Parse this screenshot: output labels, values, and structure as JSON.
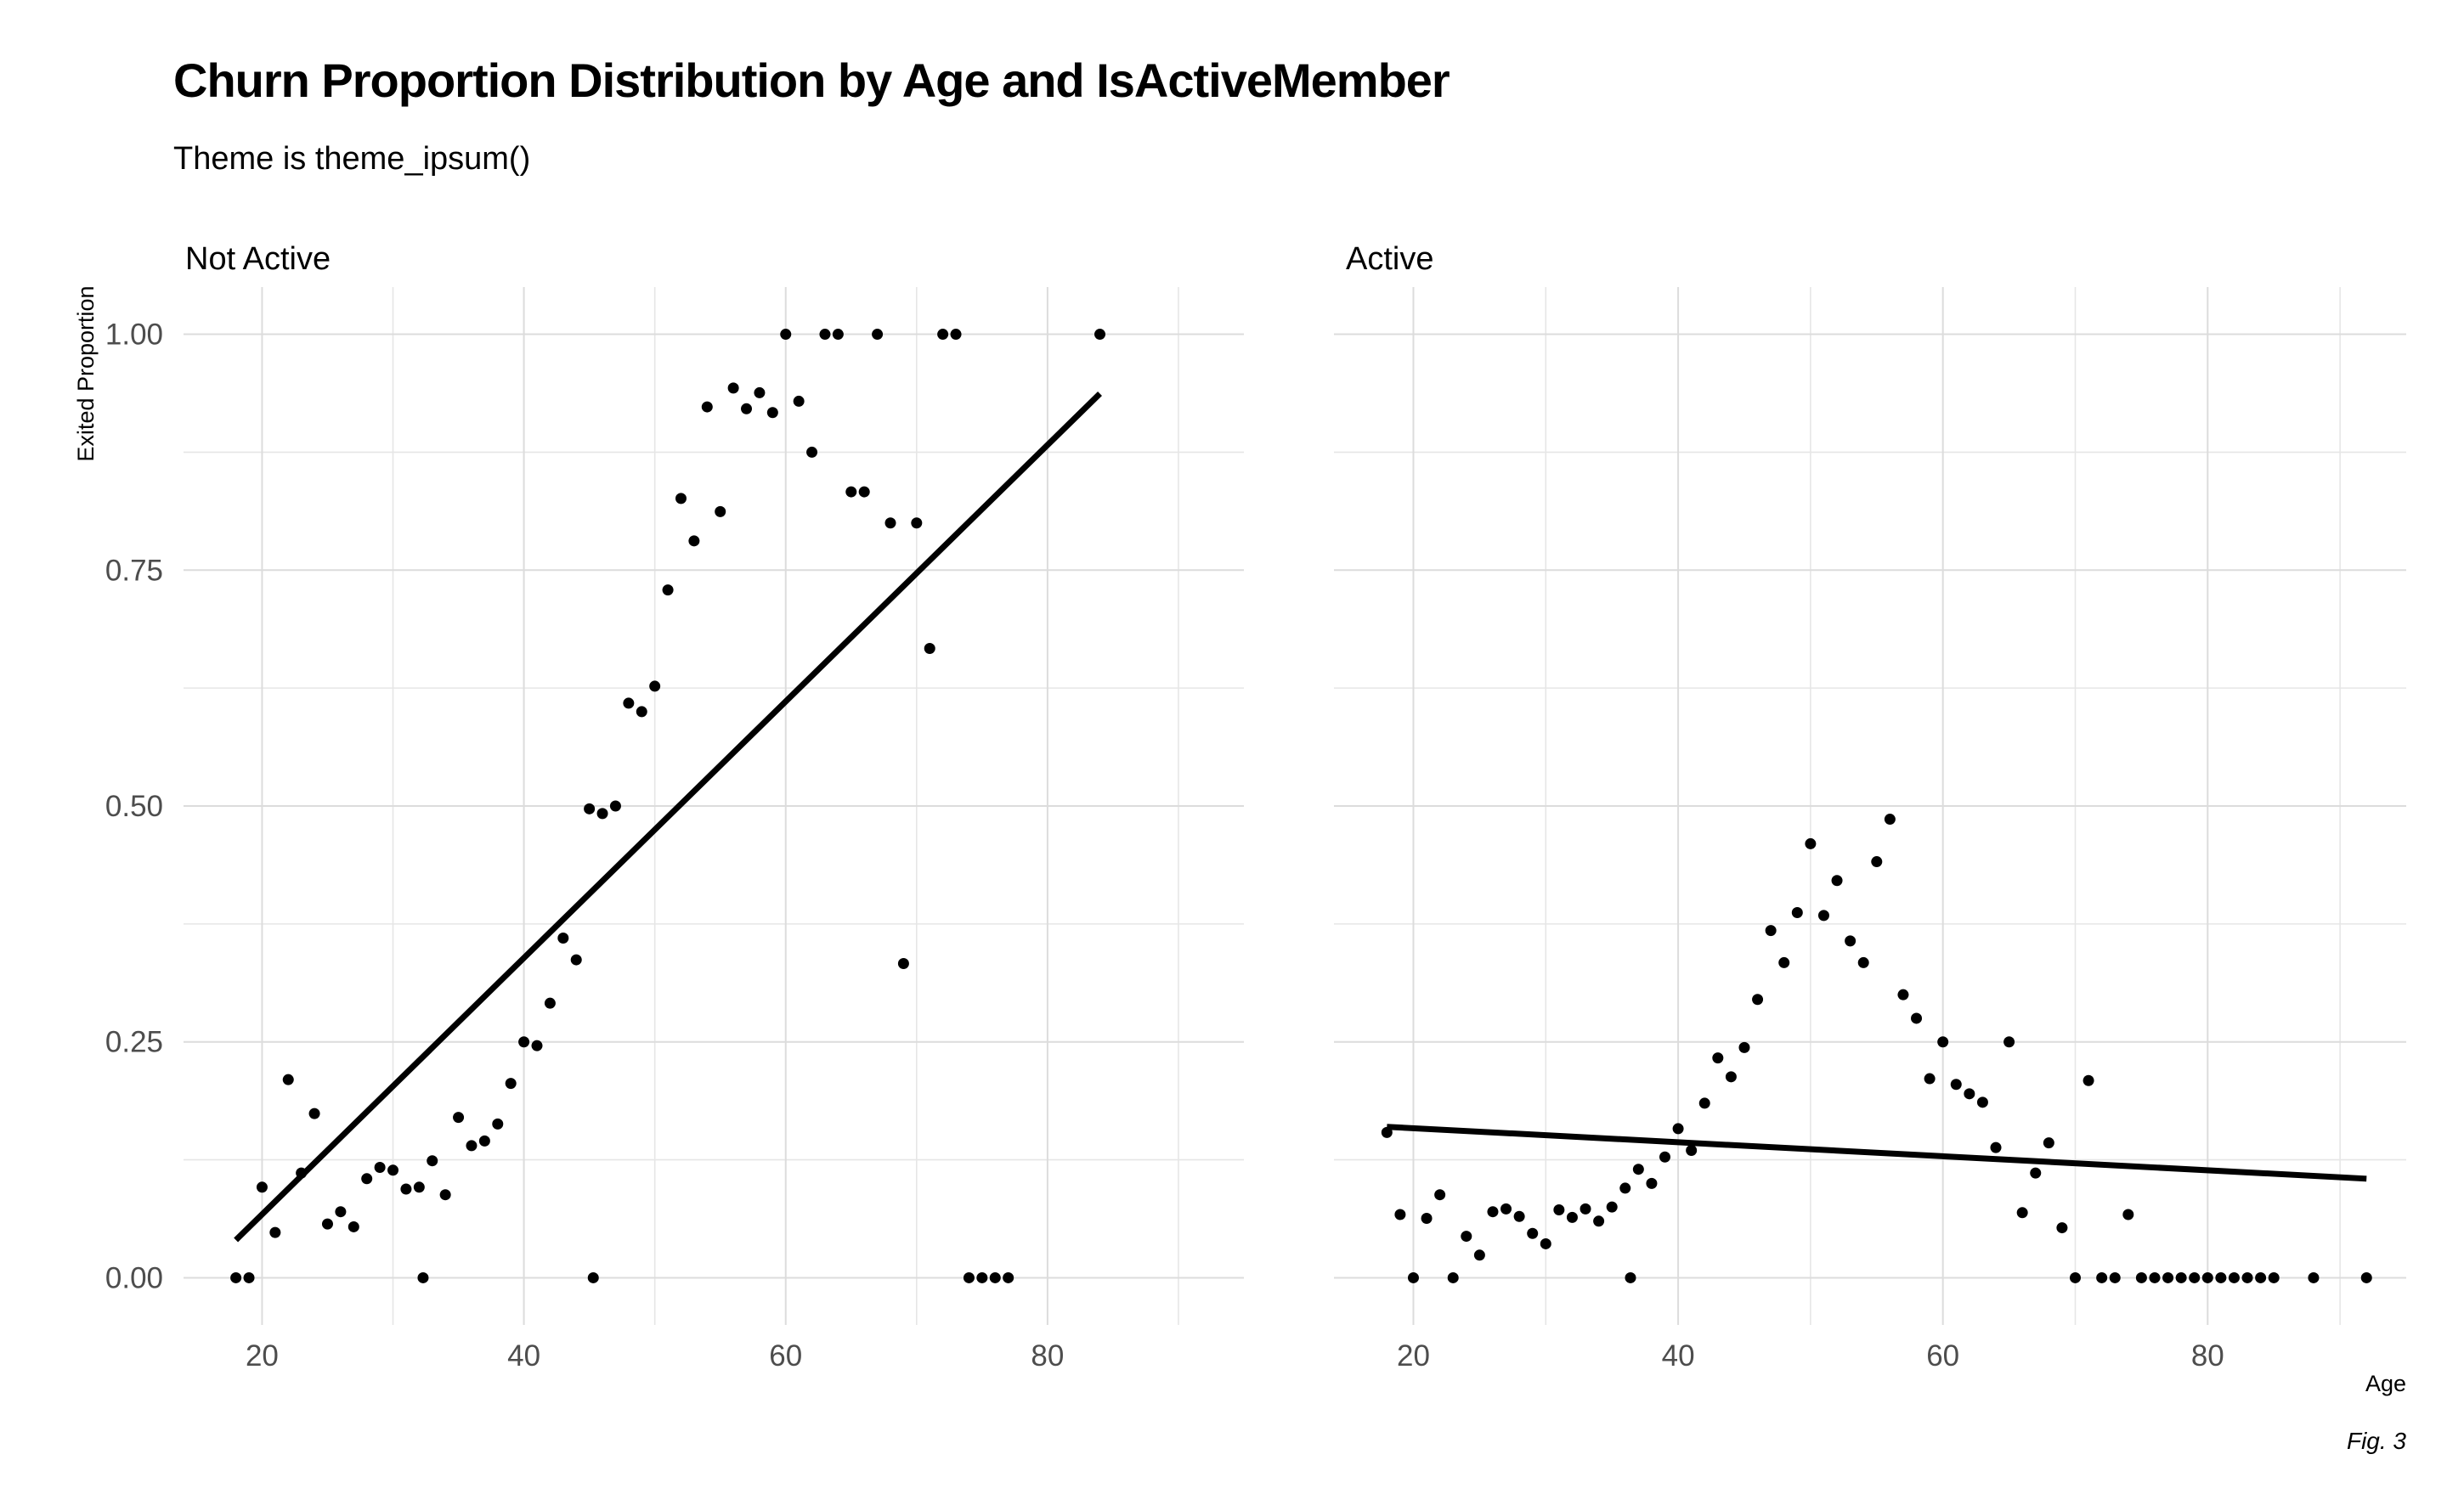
{
  "chart_data": {
    "type": "scatter",
    "title": "Churn Proportion Distribution by Age and IsActiveMember",
    "subtitle": "Theme is theme_ipsum()",
    "xlabel": "Age",
    "ylabel": "Exited Proportion",
    "caption": "Fig. 3",
    "xlim": [
      14,
      95
    ],
    "ylim": [
      -0.05,
      1.05
    ],
    "x_ticks": [
      20,
      40,
      60,
      80
    ],
    "x_tick_labels": [
      "20",
      "40",
      "60",
      "80"
    ],
    "y_ticks": [
      0,
      0.25,
      0.5,
      0.75,
      1
    ],
    "y_tick_labels": [
      "0.00",
      "0.25",
      "0.50",
      "0.75",
      "1.00"
    ],
    "grid": true,
    "facets": [
      {
        "name": "Not Active",
        "points": [
          [
            18,
            0
          ],
          [
            19,
            0
          ],
          [
            20,
            0.096
          ],
          [
            21,
            0.048
          ],
          [
            22,
            0.21
          ],
          [
            23,
            0.111
          ],
          [
            24,
            0.174
          ],
          [
            25,
            0.057
          ],
          [
            26,
            0.07
          ],
          [
            27,
            0.054
          ],
          [
            28,
            0.105
          ],
          [
            29,
            0.117
          ],
          [
            30,
            0.114
          ],
          [
            31,
            0.094
          ],
          [
            32,
            0.096
          ],
          [
            32.3,
            0
          ],
          [
            33,
            0.124
          ],
          [
            34,
            0.088
          ],
          [
            35,
            0.17
          ],
          [
            36,
            0.14
          ],
          [
            37,
            0.145
          ],
          [
            38,
            0.163
          ],
          [
            39,
            0.206
          ],
          [
            40,
            0.25
          ],
          [
            41,
            0.246
          ],
          [
            42,
            0.291
          ],
          [
            43,
            0.36
          ],
          [
            44,
            0.337
          ],
          [
            45,
            0.497
          ],
          [
            45.3,
            0
          ],
          [
            46,
            0.492
          ],
          [
            47,
            0.5
          ],
          [
            48,
            0.609
          ],
          [
            49,
            0.6
          ],
          [
            50,
            0.627
          ],
          [
            51,
            0.729
          ],
          [
            52,
            0.826
          ],
          [
            53,
            0.781
          ],
          [
            54,
            0.923
          ],
          [
            55,
            0.812
          ],
          [
            56,
            0.943
          ],
          [
            57,
            0.921
          ],
          [
            58,
            0.938
          ],
          [
            59,
            0.917
          ],
          [
            60,
            1
          ],
          [
            61,
            0.929
          ],
          [
            62,
            0.875
          ],
          [
            63,
            1
          ],
          [
            64,
            1
          ],
          [
            65,
            0.833
          ],
          [
            66,
            0.833
          ],
          [
            67,
            1
          ],
          [
            68,
            0.8
          ],
          [
            69,
            0.333
          ],
          [
            70,
            0.8
          ],
          [
            71,
            0.667
          ],
          [
            72,
            1
          ],
          [
            73,
            1
          ],
          [
            74,
            0
          ],
          [
            75,
            0
          ],
          [
            76,
            0
          ],
          [
            77,
            0
          ],
          [
            84,
            1
          ]
        ],
        "fit_line": {
          "x": [
            18,
            84
          ],
          "y": [
            0.04,
            0.937
          ]
        }
      },
      {
        "name": "Active",
        "points": [
          [
            18,
            0.154
          ],
          [
            19,
            0.067
          ],
          [
            20,
            0
          ],
          [
            21,
            0.063
          ],
          [
            22,
            0.088
          ],
          [
            23,
            0
          ],
          [
            24,
            0.044
          ],
          [
            25,
            0.024
          ],
          [
            26,
            0.07
          ],
          [
            27,
            0.073
          ],
          [
            28,
            0.065
          ],
          [
            29,
            0.047
          ],
          [
            30,
            0.036
          ],
          [
            31,
            0.072
          ],
          [
            32,
            0.064
          ],
          [
            33,
            0.073
          ],
          [
            34,
            0.06
          ],
          [
            35,
            0.075
          ],
          [
            36,
            0.095
          ],
          [
            36.4,
            0
          ],
          [
            37,
            0.115
          ],
          [
            38,
            0.1
          ],
          [
            39,
            0.128
          ],
          [
            40,
            0.158
          ],
          [
            41,
            0.135
          ],
          [
            42,
            0.185
          ],
          [
            43,
            0.233
          ],
          [
            44,
            0.213
          ],
          [
            45,
            0.244
          ],
          [
            46,
            0.295
          ],
          [
            47,
            0.368
          ],
          [
            48,
            0.334
          ],
          [
            49,
            0.387
          ],
          [
            50,
            0.46
          ],
          [
            51,
            0.384
          ],
          [
            52,
            0.421
          ],
          [
            53,
            0.357
          ],
          [
            54,
            0.334
          ],
          [
            55,
            0.441
          ],
          [
            56,
            0.486
          ],
          [
            57,
            0.3
          ],
          [
            58,
            0.275
          ],
          [
            59,
            0.211
          ],
          [
            60,
            0.25
          ],
          [
            61,
            0.205
          ],
          [
            62,
            0.195
          ],
          [
            63,
            0.186
          ],
          [
            64,
            0.138
          ],
          [
            65,
            0.25
          ],
          [
            66,
            0.069
          ],
          [
            67,
            0.111
          ],
          [
            68,
            0.143
          ],
          [
            69,
            0.053
          ],
          [
            70,
            0
          ],
          [
            71,
            0.209
          ],
          [
            72,
            0
          ],
          [
            73,
            0
          ],
          [
            74,
            0.067
          ],
          [
            75,
            0
          ],
          [
            76,
            0
          ],
          [
            77,
            0
          ],
          [
            78,
            0
          ],
          [
            79,
            0
          ],
          [
            80,
            0
          ],
          [
            81,
            0
          ],
          [
            82,
            0
          ],
          [
            83,
            0
          ],
          [
            84,
            0
          ],
          [
            85,
            0
          ],
          [
            88,
            0
          ],
          [
            92,
            0
          ]
        ],
        "fit_line": {
          "x": [
            18,
            92
          ],
          "y": [
            0.16,
            0.105
          ]
        }
      }
    ]
  }
}
